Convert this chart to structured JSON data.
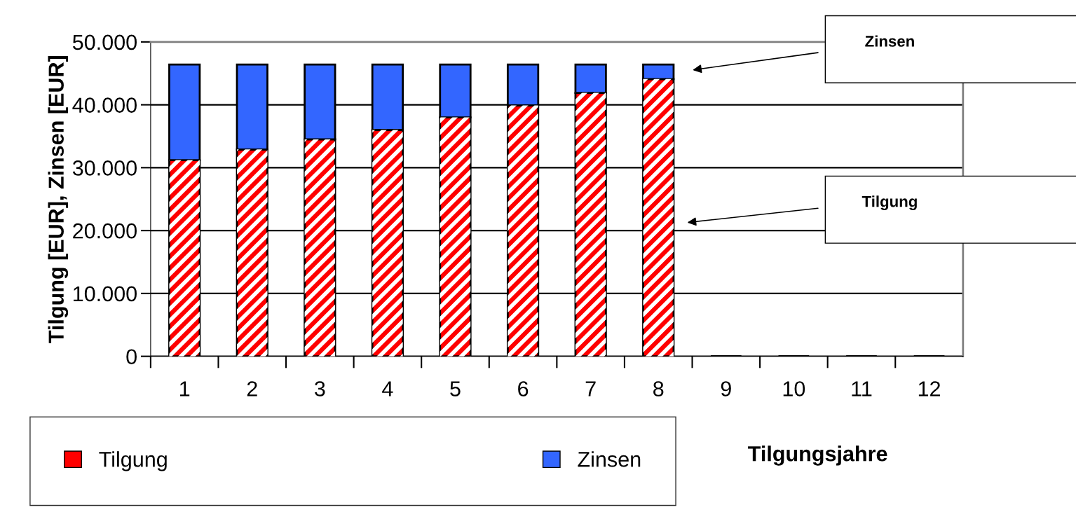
{
  "chart_data": {
    "type": "bar",
    "stacked": true,
    "xlabel": "Tilgungsjahre",
    "ylabel": "Tilgung [EUR], Zinsen [EUR]",
    "categories": [
      "1",
      "2",
      "3",
      "4",
      "5",
      "6",
      "7",
      "8",
      "9",
      "10",
      "11",
      "12"
    ],
    "series": [
      {
        "name": "Tilgung",
        "color": "#ff0000",
        "values": [
          31200,
          32900,
          34500,
          36000,
          38000,
          39900,
          41900,
          44100,
          null,
          null,
          null,
          null
        ]
      },
      {
        "name": "Zinsen",
        "color": "#3366ff",
        "values": [
          15200,
          13500,
          11900,
          10400,
          8400,
          6500,
          4500,
          2300,
          null,
          null,
          null,
          null
        ]
      }
    ],
    "ylim": [
      0,
      50000
    ],
    "yticks": [
      {
        "value": 0,
        "label": "0"
      },
      {
        "value": 10000,
        "label": "10.000"
      },
      {
        "value": 20000,
        "label": "20.000"
      },
      {
        "value": 30000,
        "label": "30.000"
      },
      {
        "value": 40000,
        "label": "40.000"
      },
      {
        "value": 50000,
        "label": "50.000"
      }
    ],
    "grid": "y",
    "legend": "bottom",
    "annotations": [
      "Zinsen",
      "Tilgung"
    ]
  }
}
